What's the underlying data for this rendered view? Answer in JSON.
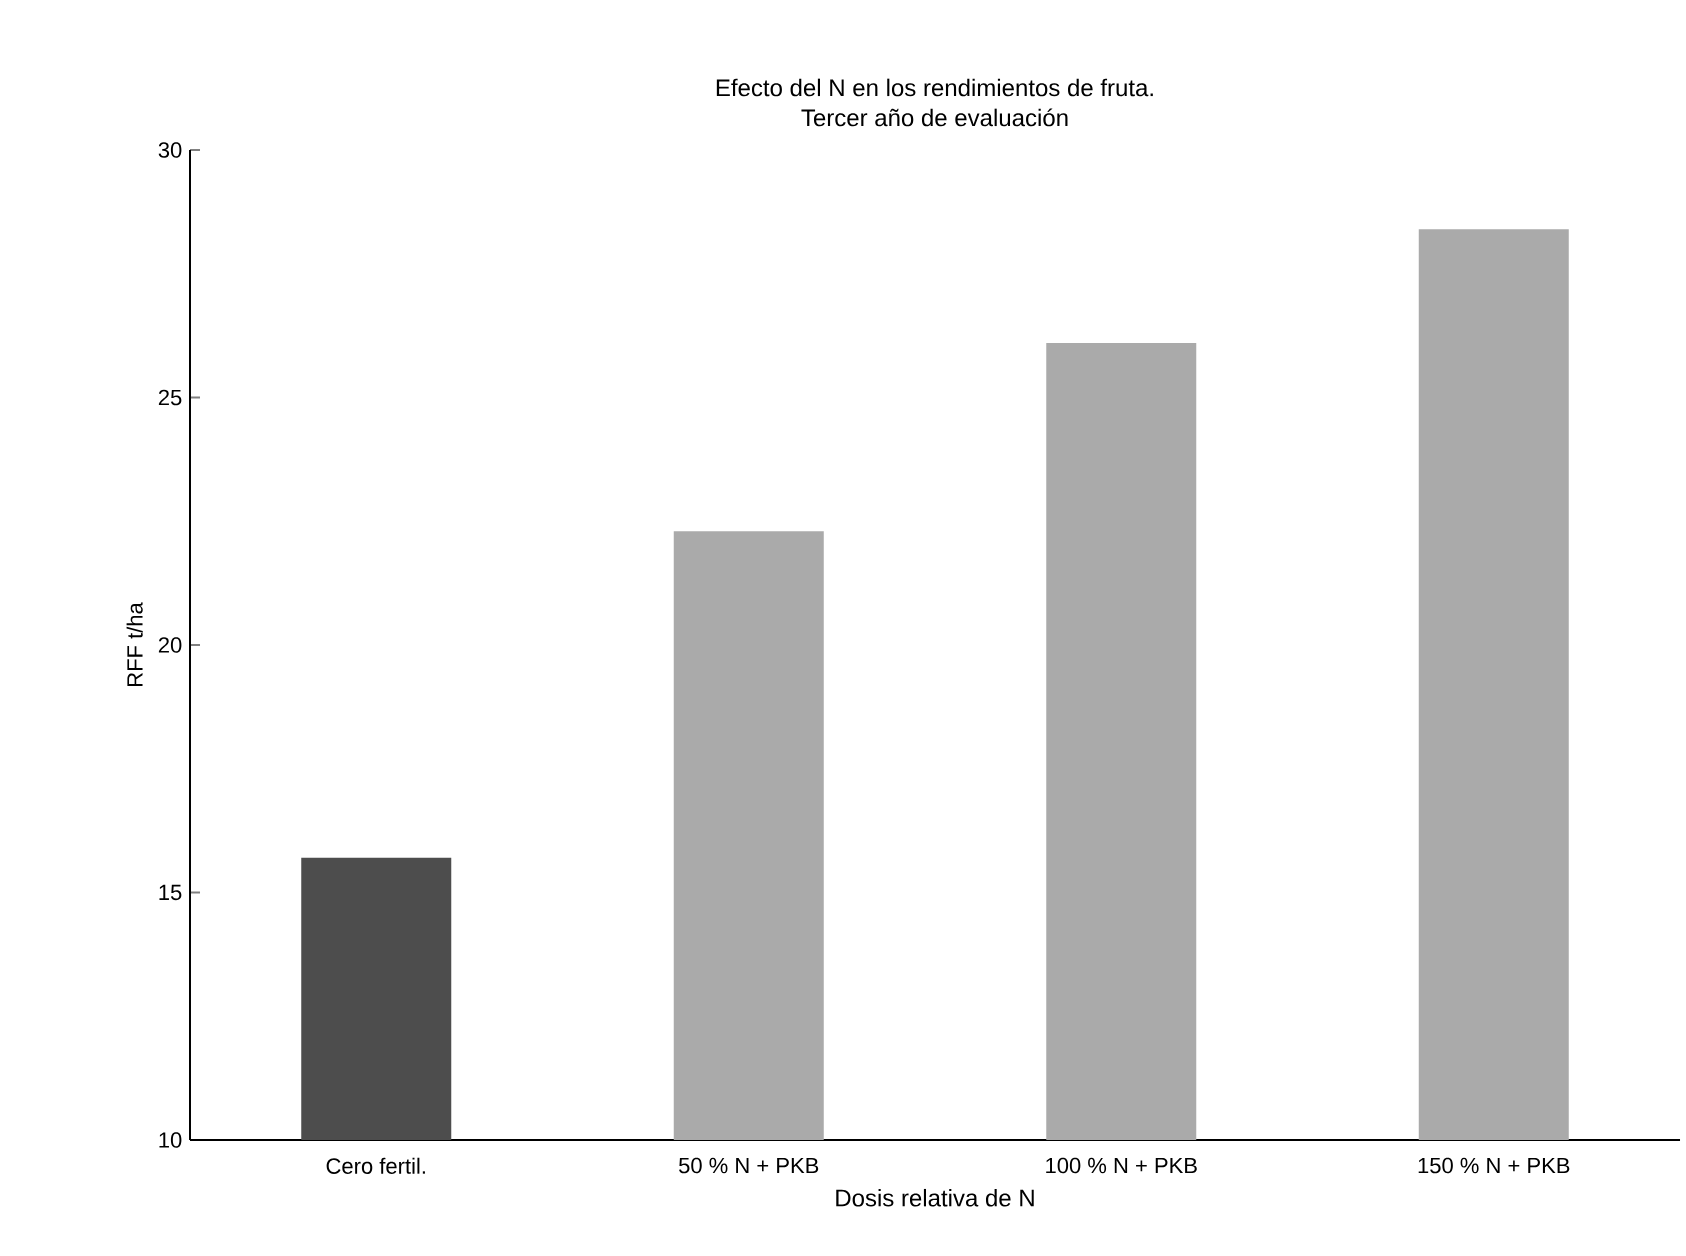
{
  "chart_data": {
    "type": "bar",
    "title": "Efecto del N en los rendimientos de fruta.",
    "subtitle": "Tercer año de evaluación",
    "xlabel": "Dosis relativa de N",
    "ylabel": "RFF t/ha",
    "categories": [
      "Cero fertil.",
      "50 % N + PKB",
      "100 % N + PKB",
      "150 % N + PKB"
    ],
    "values": [
      15.7,
      22.3,
      26.1,
      28.4
    ],
    "colors": [
      "#4d4d4d",
      "#aaaaaa",
      "#aaaaaa",
      "#aaaaaa"
    ],
    "ylim": [
      10,
      30
    ],
    "yticks": [
      10,
      15,
      20,
      25,
      30
    ]
  }
}
